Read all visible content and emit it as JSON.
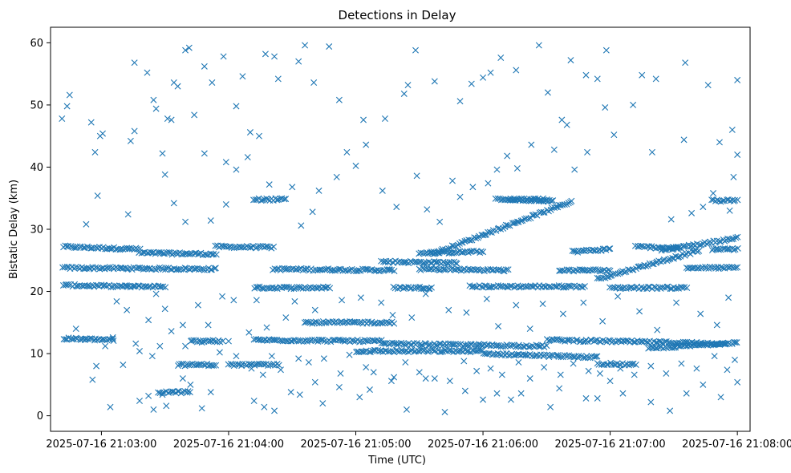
{
  "chart_data": {
    "type": "scatter",
    "title": "Detections in Delay",
    "xlabel": "Time (UTC)",
    "ylabel": "Bistatic Delay (km)",
    "marker": "x",
    "color": "#1f77b4",
    "xlim_minutes": [
      -0.4,
      5.1
    ],
    "ylim": [
      -2.5,
      62.5
    ],
    "x_ticks": [
      {
        "value": 0,
        "label": "2025-07-16 21:03:00"
      },
      {
        "value": 1,
        "label": "2025-07-16 21:04:00"
      },
      {
        "value": 2,
        "label": "2025-07-16 21:05:00"
      },
      {
        "value": 3,
        "label": "2025-07-16 21:06:00"
      },
      {
        "value": 4,
        "label": "2025-07-16 21:07:00"
      },
      {
        "value": 5,
        "label": "2025-07-16 21:08:00"
      }
    ],
    "y_ticks": [
      0,
      10,
      20,
      30,
      40,
      50,
      60
    ],
    "x_time_unit": "minutes after 2025-07-16 21:03:00",
    "tracks": [
      {
        "x": [
          -0.3,
          0.3
        ],
        "y": [
          27.2,
          26.8
        ]
      },
      {
        "x": [
          0.3,
          0.9
        ],
        "y": [
          26.2,
          26.0
        ]
      },
      {
        "x": [
          0.9,
          1.35
        ],
        "y": [
          27.2,
          27.1
        ]
      },
      {
        "x": [
          -0.3,
          0.9
        ],
        "y": [
          23.8,
          23.6
        ]
      },
      {
        "x": [
          1.35,
          2.3
        ],
        "y": [
          23.6,
          23.4
        ]
      },
      {
        "x": [
          -0.3,
          0.2
        ],
        "y": [
          21.0,
          20.8
        ]
      },
      {
        "x": [
          0.2,
          0.5
        ],
        "y": [
          20.8,
          20.8
        ]
      },
      {
        "x": [
          1.2,
          1.8
        ],
        "y": [
          20.6,
          20.6
        ]
      },
      {
        "x": [
          2.3,
          2.6
        ],
        "y": [
          20.6,
          20.6
        ]
      },
      {
        "x": [
          2.2,
          2.8
        ],
        "y": [
          24.8,
          24.6
        ]
      },
      {
        "x": [
          2.5,
          3.0
        ],
        "y": [
          26.2,
          26.4
        ]
      },
      {
        "x": [
          2.5,
          3.2
        ],
        "y": [
          23.6,
          23.4
        ]
      },
      {
        "x": [
          2.9,
          3.8
        ],
        "y": [
          20.8,
          20.8
        ]
      },
      {
        "x": [
          2.6,
          3.7
        ],
        "y": [
          26.0,
          34.5
        ]
      },
      {
        "x": [
          3.2,
          3.55
        ],
        "y": [
          34.8,
          34.6
        ]
      },
      {
        "x": [
          3.7,
          4.0
        ],
        "y": [
          26.4,
          26.8
        ]
      },
      {
        "x": [
          3.6,
          4.0
        ],
        "y": [
          23.4,
          23.4
        ]
      },
      {
        "x": [
          3.9,
          4.7
        ],
        "y": [
          22.0,
          26.6
        ]
      },
      {
        "x": [
          4.4,
          5.0
        ],
        "y": [
          26.6,
          28.6
        ]
      },
      {
        "x": [
          4.0,
          4.6
        ],
        "y": [
          20.6,
          20.6
        ]
      },
      {
        "x": [
          4.6,
          5.0
        ],
        "y": [
          23.8,
          23.8
        ]
      },
      {
        "x": [
          4.8,
          5.0
        ],
        "y": [
          26.8,
          26.8
        ]
      },
      {
        "x": [
          4.2,
          4.55
        ],
        "y": [
          27.2,
          27.0
        ]
      },
      {
        "x": [
          -0.3,
          0.1
        ],
        "y": [
          12.4,
          12.2
        ]
      },
      {
        "x": [
          1.2,
          2.2
        ],
        "y": [
          12.2,
          12.0
        ]
      },
      {
        "x": [
          2.2,
          3.5
        ],
        "y": [
          11.6,
          11.2
        ]
      },
      {
        "x": [
          3.5,
          4.9
        ],
        "y": [
          12.2,
          11.6
        ]
      },
      {
        "x": [
          2.0,
          3.0
        ],
        "y": [
          10.4,
          10.4
        ]
      },
      {
        "x": [
          3.0,
          3.9
        ],
        "y": [
          10.0,
          9.4
        ]
      },
      {
        "x": [
          4.3,
          5.0
        ],
        "y": [
          10.8,
          11.8
        ]
      },
      {
        "x": [
          1.6,
          2.3
        ],
        "y": [
          15.0,
          15.0
        ]
      },
      {
        "x": [
          0.6,
          0.9
        ],
        "y": [
          8.2,
          8.2
        ]
      },
      {
        "x": [
          1.0,
          1.4
        ],
        "y": [
          8.2,
          8.2
        ]
      },
      {
        "x": [
          3.9,
          4.2
        ],
        "y": [
          8.4,
          8.2
        ]
      },
      {
        "x": [
          0.45,
          0.7
        ],
        "y": [
          3.8,
          3.8
        ]
      },
      {
        "x": [
          0.7,
          0.95
        ],
        "y": [
          12.0,
          12.0
        ]
      },
      {
        "x": [
          1.2,
          1.45
        ],
        "y": [
          34.8,
          34.8
        ]
      },
      {
        "x": [
          3.1,
          3.5
        ],
        "y": [
          34.8,
          34.8
        ]
      },
      {
        "x": [
          4.8,
          5.0
        ],
        "y": [
          34.6,
          34.6
        ]
      }
    ],
    "scatter_points": [
      [
        -0.31,
        47.8
      ],
      [
        -0.27,
        49.8
      ],
      [
        -0.25,
        51.6
      ],
      [
        -0.08,
        47.2
      ],
      [
        -0.05,
        42.4
      ],
      [
        -0.01,
        45.0
      ],
      [
        0.01,
        45.4
      ],
      [
        0.23,
        44.2
      ],
      [
        0.26,
        45.8
      ],
      [
        0.36,
        55.2
      ],
      [
        0.43,
        49.4
      ],
      [
        0.41,
        50.8
      ],
      [
        0.52,
        47.8
      ],
      [
        0.55,
        47.6
      ],
      [
        0.57,
        53.6
      ],
      [
        0.6,
        53.0
      ],
      [
        0.66,
        58.8
      ],
      [
        0.69,
        59.2
      ],
      [
        0.73,
        48.4
      ],
      [
        0.81,
        56.2
      ],
      [
        0.87,
        53.6
      ],
      [
        0.96,
        57.8
      ],
      [
        1.06,
        49.8
      ],
      [
        1.11,
        54.6
      ],
      [
        1.15,
        41.6
      ],
      [
        1.29,
        58.2
      ],
      [
        1.36,
        57.8
      ],
      [
        1.39,
        54.2
      ],
      [
        1.55,
        57.0
      ],
      [
        1.6,
        59.6
      ],
      [
        1.67,
        53.6
      ],
      [
        1.79,
        59.4
      ],
      [
        1.87,
        50.8
      ],
      [
        2.06,
        47.6
      ],
      [
        2.23,
        47.8
      ],
      [
        2.38,
        51.8
      ],
      [
        2.41,
        53.2
      ],
      [
        2.47,
        58.8
      ],
      [
        2.62,
        53.8
      ],
      [
        2.82,
        50.6
      ],
      [
        2.91,
        53.4
      ],
      [
        3.0,
        54.4
      ],
      [
        3.06,
        55.2
      ],
      [
        3.14,
        57.6
      ],
      [
        3.26,
        55.6
      ],
      [
        3.44,
        59.6
      ],
      [
        3.51,
        52.0
      ],
      [
        3.69,
        57.2
      ],
      [
        3.81,
        54.8
      ],
      [
        3.9,
        54.2
      ],
      [
        3.97,
        58.8
      ],
      [
        3.96,
        49.6
      ],
      [
        4.25,
        54.8
      ],
      [
        4.36,
        54.2
      ],
      [
        4.59,
        56.8
      ],
      [
        4.77,
        53.2
      ],
      [
        5.0,
        54.0
      ],
      [
        4.96,
        46.0
      ],
      [
        0.26,
        56.8
      ],
      [
        0.21,
        32.4
      ],
      [
        -0.12,
        30.8
      ],
      [
        -0.03,
        35.4
      ],
      [
        0.48,
        42.2
      ],
      [
        0.5,
        38.8
      ],
      [
        0.57,
        34.2
      ],
      [
        0.66,
        31.2
      ],
      [
        0.81,
        42.2
      ],
      [
        0.86,
        31.4
      ],
      [
        0.98,
        34.0
      ],
      [
        0.98,
        40.8
      ],
      [
        1.06,
        39.6
      ],
      [
        1.17,
        45.6
      ],
      [
        1.24,
        45.0
      ],
      [
        1.32,
        37.2
      ],
      [
        1.5,
        36.8
      ],
      [
        1.57,
        30.6
      ],
      [
        1.66,
        32.8
      ],
      [
        1.71,
        36.2
      ],
      [
        1.85,
        38.4
      ],
      [
        1.93,
        42.4
      ],
      [
        2.0,
        40.2
      ],
      [
        2.08,
        43.6
      ],
      [
        2.21,
        36.2
      ],
      [
        2.32,
        33.6
      ],
      [
        2.48,
        38.6
      ],
      [
        2.56,
        33.2
      ],
      [
        2.66,
        31.2
      ],
      [
        2.76,
        37.8
      ],
      [
        2.82,
        35.2
      ],
      [
        2.92,
        36.8
      ],
      [
        3.04,
        37.4
      ],
      [
        3.11,
        39.6
      ],
      [
        3.19,
        41.8
      ],
      [
        3.27,
        39.8
      ],
      [
        3.38,
        43.6
      ],
      [
        3.56,
        42.8
      ],
      [
        3.62,
        47.6
      ],
      [
        3.66,
        46.8
      ],
      [
        3.72,
        39.6
      ],
      [
        3.82,
        42.4
      ],
      [
        4.03,
        45.2
      ],
      [
        4.18,
        50.0
      ],
      [
        4.33,
        42.4
      ],
      [
        4.48,
        31.6
      ],
      [
        4.58,
        44.4
      ],
      [
        4.64,
        32.6
      ],
      [
        4.73,
        33.6
      ],
      [
        4.81,
        35.8
      ],
      [
        4.86,
        44.0
      ],
      [
        4.94,
        33.0
      ],
      [
        4.97,
        38.4
      ],
      [
        5.0,
        42.0
      ],
      [
        0.12,
        18.4
      ],
      [
        0.2,
        17.0
      ],
      [
        0.37,
        15.4
      ],
      [
        0.43,
        19.6
      ],
      [
        0.5,
        17.2
      ],
      [
        0.64,
        14.6
      ],
      [
        0.76,
        17.8
      ],
      [
        0.84,
        14.6
      ],
      [
        0.95,
        19.2
      ],
      [
        1.04,
        18.6
      ],
      [
        1.16,
        13.4
      ],
      [
        1.22,
        18.6
      ],
      [
        1.3,
        14.2
      ],
      [
        1.45,
        15.8
      ],
      [
        1.52,
        18.4
      ],
      [
        1.68,
        17.0
      ],
      [
        1.89,
        18.6
      ],
      [
        2.04,
        19.0
      ],
      [
        2.2,
        18.2
      ],
      [
        2.29,
        16.2
      ],
      [
        2.44,
        15.8
      ],
      [
        2.55,
        19.6
      ],
      [
        2.73,
        17.0
      ],
      [
        2.87,
        16.6
      ],
      [
        3.03,
        18.8
      ],
      [
        3.12,
        14.4
      ],
      [
        3.26,
        17.8
      ],
      [
        3.37,
        14.0
      ],
      [
        3.47,
        18.0
      ],
      [
        3.63,
        16.4
      ],
      [
        3.79,
        18.2
      ],
      [
        3.94,
        15.2
      ],
      [
        4.06,
        19.2
      ],
      [
        4.23,
        16.8
      ],
      [
        4.37,
        13.8
      ],
      [
        4.52,
        18.2
      ],
      [
        4.71,
        16.4
      ],
      [
        4.84,
        14.6
      ],
      [
        4.93,
        19.0
      ],
      [
        -0.2,
        14.0
      ],
      [
        -0.13,
        12.2
      ],
      [
        0.03,
        11.2
      ],
      [
        0.09,
        12.6
      ],
      [
        0.27,
        11.6
      ],
      [
        0.3,
        10.4
      ],
      [
        0.4,
        9.6
      ],
      [
        0.46,
        11.2
      ],
      [
        0.55,
        13.6
      ],
      [
        0.66,
        11.2
      ],
      [
        0.79,
        11.8
      ],
      [
        0.93,
        10.2
      ],
      [
        1.0,
        12.0
      ],
      [
        1.06,
        9.6
      ],
      [
        1.18,
        7.6
      ],
      [
        1.27,
        6.6
      ],
      [
        1.34,
        9.6
      ],
      [
        1.41,
        7.4
      ],
      [
        1.55,
        9.2
      ],
      [
        1.63,
        8.6
      ],
      [
        1.75,
        9.2
      ],
      [
        1.88,
        6.8
      ],
      [
        1.95,
        9.8
      ],
      [
        2.08,
        7.8
      ],
      [
        2.14,
        7.0
      ],
      [
        2.3,
        6.2
      ],
      [
        2.39,
        8.6
      ],
      [
        2.5,
        7.0
      ],
      [
        2.62,
        6.0
      ],
      [
        2.74,
        5.6
      ],
      [
        2.85,
        8.8
      ],
      [
        2.95,
        7.2
      ],
      [
        3.06,
        7.6
      ],
      [
        3.15,
        6.6
      ],
      [
        3.28,
        8.6
      ],
      [
        3.37,
        6.0
      ],
      [
        3.48,
        7.8
      ],
      [
        3.61,
        6.6
      ],
      [
        3.71,
        8.4
      ],
      [
        3.83,
        7.2
      ],
      [
        3.92,
        6.8
      ],
      [
        4.08,
        7.6
      ],
      [
        4.19,
        6.6
      ],
      [
        4.32,
        8.0
      ],
      [
        4.44,
        6.8
      ],
      [
        4.56,
        8.4
      ],
      [
        4.68,
        7.6
      ],
      [
        4.82,
        9.6
      ],
      [
        4.98,
        9.0
      ],
      [
        -0.07,
        5.8
      ],
      [
        -0.04,
        8.0
      ],
      [
        0.07,
        1.4
      ],
      [
        0.17,
        8.2
      ],
      [
        0.3,
        2.4
      ],
      [
        0.37,
        3.2
      ],
      [
        0.41,
        1.0
      ],
      [
        0.48,
        3.4
      ],
      [
        0.51,
        1.6
      ],
      [
        0.64,
        6.0
      ],
      [
        0.7,
        5.0
      ],
      [
        0.79,
        1.2
      ],
      [
        0.86,
        3.8
      ],
      [
        1.2,
        2.4
      ],
      [
        1.28,
        1.4
      ],
      [
        1.36,
        0.8
      ],
      [
        1.49,
        3.8
      ],
      [
        1.56,
        3.4
      ],
      [
        1.68,
        5.4
      ],
      [
        1.74,
        2.0
      ],
      [
        1.87,
        4.6
      ],
      [
        2.03,
        3.0
      ],
      [
        2.11,
        4.2
      ],
      [
        2.28,
        5.6
      ],
      [
        2.4,
        1.0
      ],
      [
        2.55,
        6.0
      ],
      [
        2.7,
        0.6
      ],
      [
        2.86,
        4.0
      ],
      [
        3.0,
        2.6
      ],
      [
        3.11,
        3.6
      ],
      [
        3.22,
        2.6
      ],
      [
        3.3,
        3.6
      ],
      [
        3.53,
        1.4
      ],
      [
        3.6,
        4.4
      ],
      [
        3.81,
        2.8
      ],
      [
        3.9,
        2.8
      ],
      [
        4.0,
        5.6
      ],
      [
        4.1,
        3.6
      ],
      [
        4.32,
        2.2
      ],
      [
        4.47,
        0.8
      ],
      [
        4.6,
        3.6
      ],
      [
        4.73,
        5.0
      ],
      [
        4.87,
        3.0
      ],
      [
        4.92,
        7.4
      ],
      [
        5.0,
        5.4
      ]
    ]
  }
}
